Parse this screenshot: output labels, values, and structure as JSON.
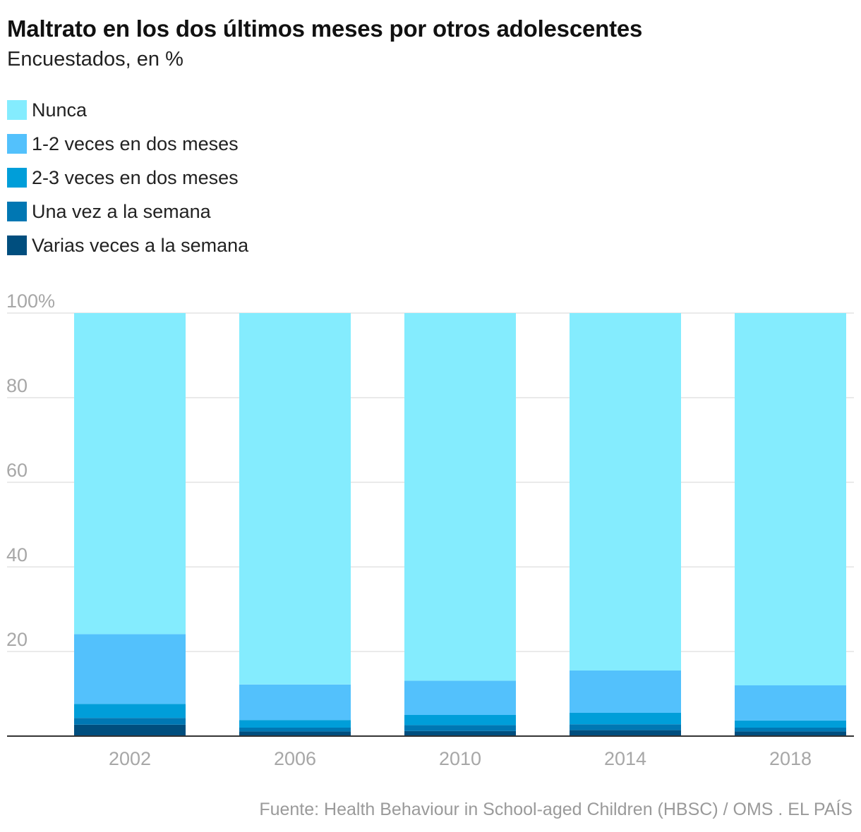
{
  "chart_data": {
    "type": "bar",
    "stacked": true,
    "title": "Maltrato en los dos últimos meses por otros adolescentes",
    "subtitle": "Encuestados, en %",
    "categories": [
      "2002",
      "2006",
      "2010",
      "2014",
      "2018"
    ],
    "series": [
      {
        "name": "Varias veces a la semana",
        "color": "#004e7e",
        "values": [
          2.7,
          1.1,
          1.2,
          1.4,
          1.1
        ]
      },
      {
        "name": "Una vez a la semana",
        "color": "#0077b3",
        "values": [
          1.6,
          0.9,
          1.4,
          1.4,
          0.9
        ]
      },
      {
        "name": "2-3 veces en dos meses",
        "color": "#009ed9",
        "values": [
          3.3,
          1.8,
          2.4,
          2.7,
          1.7
        ]
      },
      {
        "name": "1-2 veces en dos meses",
        "color": "#53c1fc",
        "values": [
          16.5,
          8.4,
          8.1,
          10.0,
          8.3
        ]
      },
      {
        "name": "Nunca",
        "color": "#84ecfe",
        "values": [
          75.9,
          87.8,
          86.9,
          84.5,
          88.0
        ]
      }
    ],
    "legend_order": [
      "Nunca",
      "1-2 veces en dos meses",
      "2-3 veces en dos meses",
      "Una vez a la semana",
      "Varias veces a la semana"
    ],
    "ylim": [
      0,
      100
    ],
    "yticks": [
      {
        "value": 0,
        "label": ""
      },
      {
        "value": 20,
        "label": "20"
      },
      {
        "value": 40,
        "label": "40"
      },
      {
        "value": 60,
        "label": "60"
      },
      {
        "value": 80,
        "label": "80"
      },
      {
        "value": 100,
        "label": "100%"
      }
    ],
    "xlabel": "",
    "ylabel": "",
    "grid": true,
    "legend_position": "top-left"
  },
  "source": "Fuente: Health Behaviour in School-aged Children (HBSC) / OMS . EL PAÍS"
}
